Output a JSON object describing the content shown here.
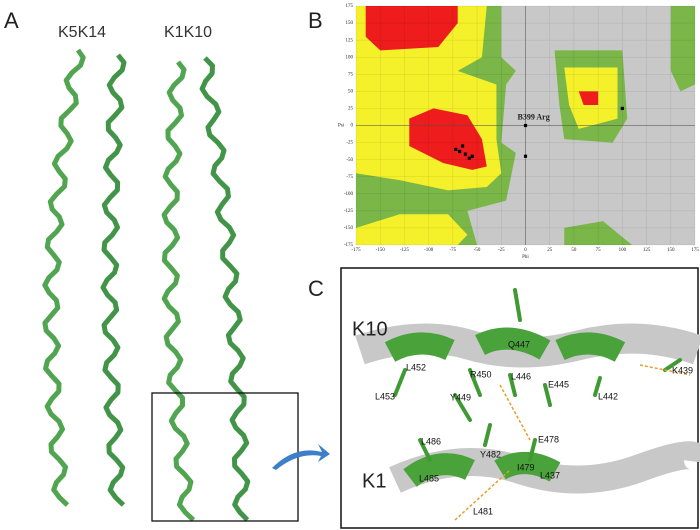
{
  "panels": {
    "a": {
      "label": "A",
      "titles": [
        "K5K14",
        "K1K10"
      ]
    },
    "b": {
      "label": "B"
    },
    "c": {
      "label": "C",
      "chains": [
        "K10",
        "K1"
      ],
      "residues": [
        "Q447",
        "L452",
        "R450",
        "L446",
        "E445",
        "K439",
        "L453",
        "Y449",
        "L442",
        "L486",
        "E478",
        "Y482",
        "I479",
        "L437",
        "L485",
        "L481"
      ]
    }
  },
  "chart_data": {
    "type": "scatter",
    "xlabel": "Phi",
    "ylabel": "Psi",
    "xlim": [
      -175,
      175
    ],
    "ylim": [
      -175,
      175
    ],
    "xticks": [
      -175,
      -150,
      -125,
      -100,
      -75,
      -50,
      -25,
      0,
      25,
      50,
      75,
      100,
      125,
      150,
      175
    ],
    "yticks": [
      -175,
      -150,
      -125,
      -100,
      -75,
      -50,
      -25,
      0,
      25,
      50,
      75,
      100,
      125,
      150,
      175
    ],
    "x": [
      -68,
      -62,
      -58,
      -72,
      -65,
      -55,
      0,
      0,
      100
    ],
    "y": [
      -38,
      -42,
      -48,
      -35,
      -30,
      -45,
      0,
      -45,
      25
    ],
    "annotation": "B399 Arg",
    "color": "#000000",
    "grid": true
  }
}
